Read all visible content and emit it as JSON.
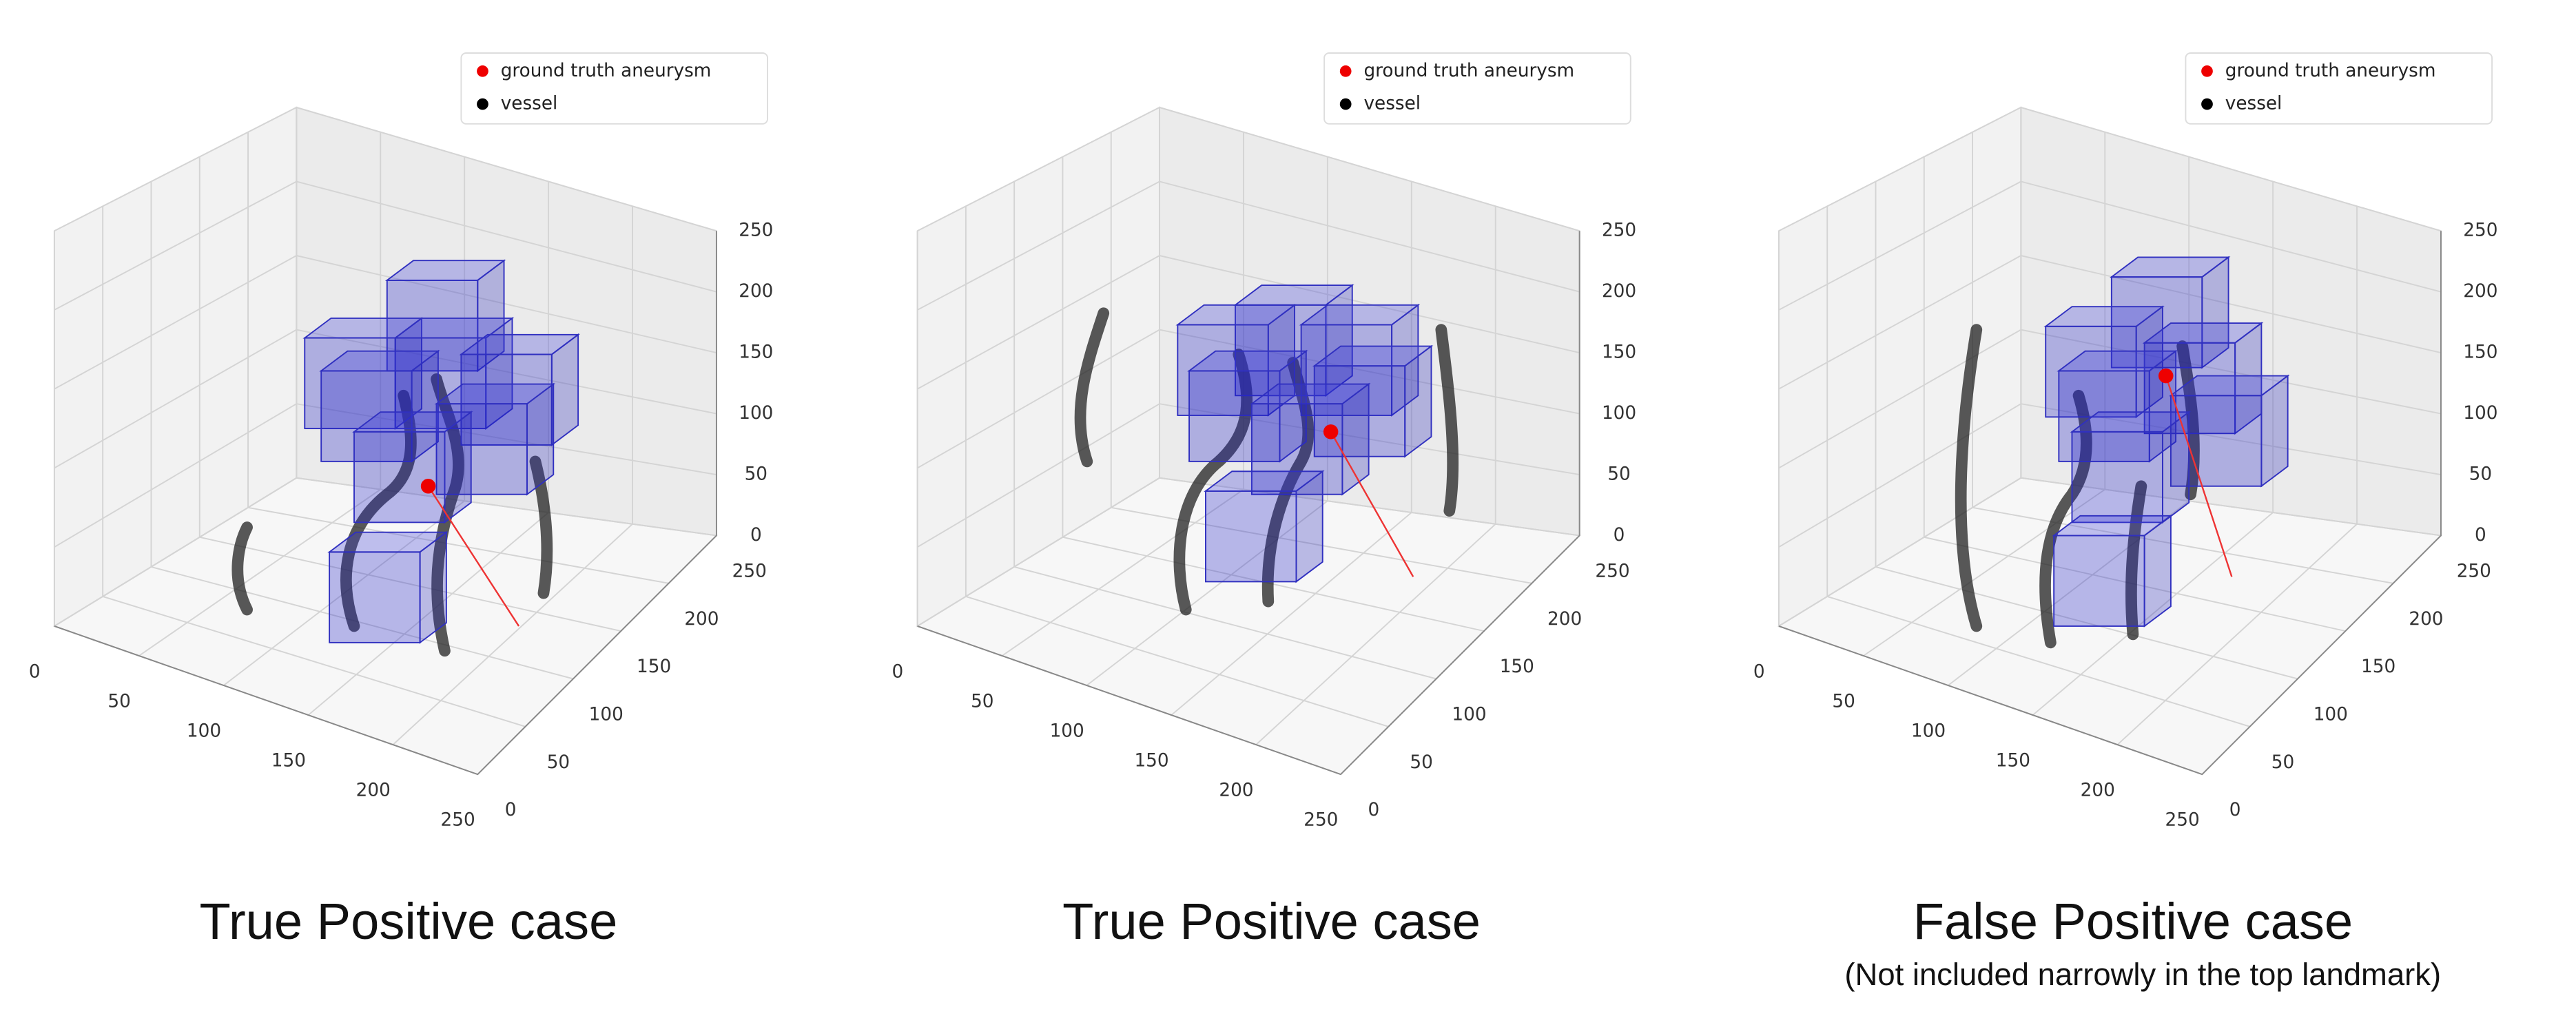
{
  "panels": [
    {
      "legend": [
        "ground truth aneurysm",
        "vessel"
      ],
      "x_ticks": [
        0,
        50,
        100,
        150,
        200,
        250
      ],
      "y_ticks": [
        0,
        50,
        100,
        150,
        200,
        250
      ],
      "z_ticks": [
        0,
        50,
        100,
        150,
        200,
        250
      ],
      "caption": "True Positive case"
    },
    {
      "legend": [
        "ground truth aneurysm",
        "vessel"
      ],
      "x_ticks": [
        0,
        50,
        100,
        150,
        200,
        250
      ],
      "y_ticks": [
        0,
        50,
        100,
        150,
        200,
        250
      ],
      "z_ticks": [
        0,
        50,
        100,
        150,
        200,
        250
      ],
      "caption": "True Positive case"
    },
    {
      "legend": [
        "ground truth aneurysm",
        "vessel"
      ],
      "x_ticks": [
        0,
        50,
        100,
        150,
        200,
        250
      ],
      "y_ticks": [
        0,
        50,
        100,
        150,
        200,
        250
      ],
      "z_ticks": [
        0,
        50,
        100,
        150,
        200,
        250
      ],
      "caption": "False Positive case",
      "note": "(Not included narrowly in the top landmark)"
    }
  ]
}
